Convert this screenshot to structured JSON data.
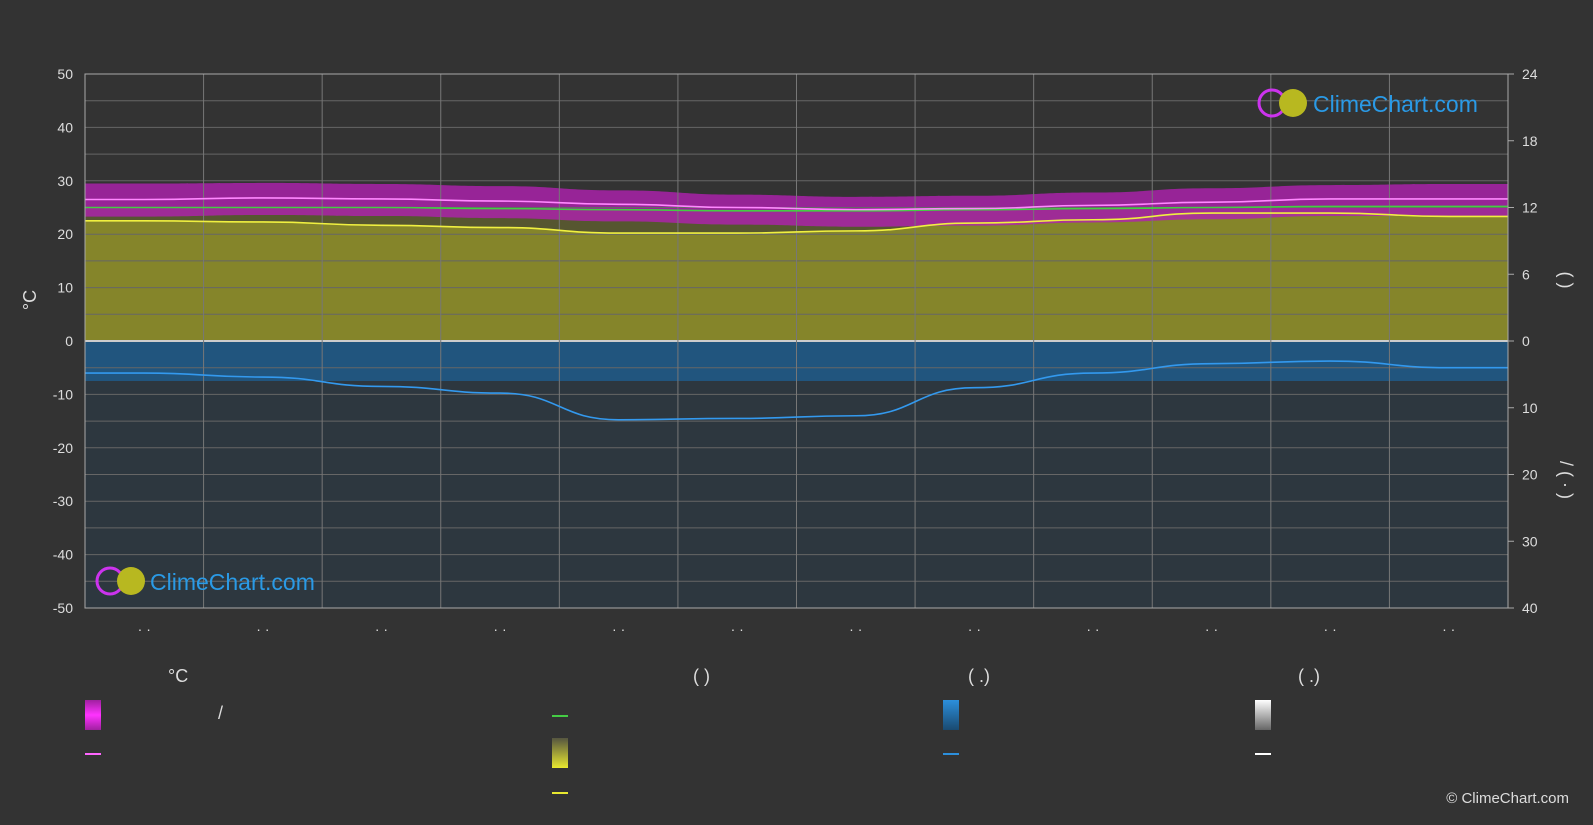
{
  "chart_data": {
    "type": "area",
    "title": "",
    "ylabel_left": "°C",
    "ylabel_right_top": "(  )",
    "ylabel_right_bottom": "/  ( · )",
    "ylim_left": [
      -50,
      50
    ],
    "yticks_left": [
      "50",
      "40",
      "30",
      "20",
      "10",
      "0",
      "-10",
      "-20",
      "-30",
      "-40",
      "-50"
    ],
    "ylim_right_top": [
      0,
      24
    ],
    "yticks_right_top": [
      "24",
      "18",
      "12",
      "6",
      "0"
    ],
    "ylim_right_bottom": [
      0,
      40
    ],
    "yticks_right_bottom": [
      "10",
      "20",
      "30",
      "40"
    ],
    "x_tick_labels": [
      "· ·",
      "· ·",
      "· ·",
      "· ·",
      "· ·",
      "· ·",
      "· ·",
      "· ·",
      "· ·",
      "· ·",
      "· ·",
      "· ·"
    ],
    "months": 12,
    "grid": true,
    "series": [
      {
        "key": "max_temp",
        "values": [
          26.5,
          26.8,
          26.6,
          26.2,
          25.6,
          25.0,
          24.6,
          24.8,
          25.4,
          26.0,
          26.6,
          26.6
        ],
        "color": "#ff66ff"
      },
      {
        "key": "min_temp_band_top",
        "values": [
          29.5,
          29.6,
          29.4,
          29.0,
          28.2,
          27.4,
          27.0,
          27.2,
          27.8,
          28.6,
          29.2,
          29.4
        ],
        "color": "#e020e0"
      },
      {
        "key": "daylight",
        "values": [
          12.0,
          12.0,
          12.0,
          11.9,
          11.8,
          11.7,
          11.7,
          11.8,
          11.9,
          12.0,
          12.1,
          12.1
        ],
        "color": "#44cc44"
      },
      {
        "key": "sunshine",
        "values": [
          10.8,
          10.7,
          10.4,
          10.2,
          9.7,
          9.7,
          9.9,
          10.6,
          10.9,
          11.5,
          11.5,
          11.2
        ],
        "color": "#e8e830"
      },
      {
        "key": "precipitation",
        "values": [
          4.8,
          5.4,
          6.8,
          7.8,
          11.8,
          11.6,
          11.2,
          7.0,
          4.8,
          3.4,
          3.0,
          4.0
        ],
        "color": "#2c8fdc"
      }
    ]
  },
  "legend": {
    "col1_header": "°C",
    "col1_slash": "/",
    "col2_header": "(       )",
    "col3_header": "(   .)",
    "col4_header": "(   .)"
  },
  "watermark": {
    "text": "ClimeChart.com"
  },
  "copyright": "© ClimeChart.com"
}
